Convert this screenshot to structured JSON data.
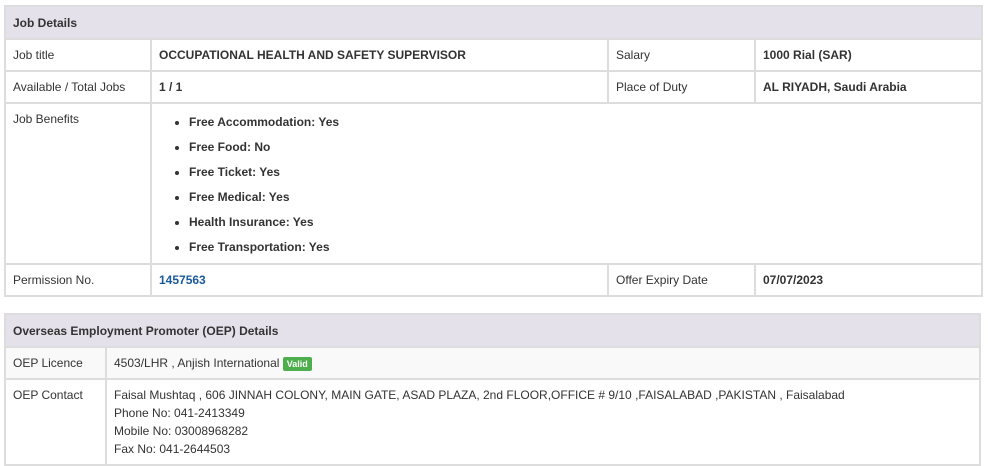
{
  "job_details": {
    "title": "Job Details",
    "job_title_label": "Job title",
    "job_title": "OCCUPATIONAL HEALTH AND SAFETY SUPERVISOR",
    "salary_label": "Salary",
    "salary": "1000 Rial (SAR)",
    "jobs_label": "Available / Total Jobs",
    "jobs": "1 / 1",
    "place_label": "Place of Duty",
    "place": "AL RIYADH, Saudi Arabia",
    "benefits_label": "Job Benefits",
    "benefits": [
      "Free Accommodation: Yes",
      "Free Food: No",
      "Free Ticket: Yes",
      "Free Medical: Yes",
      "Health Insurance: Yes",
      "Free Transportation: Yes"
    ],
    "permission_label": "Permission No.",
    "permission": "1457563",
    "expiry_label": "Offer Expiry Date",
    "expiry": "07/07/2023"
  },
  "oep": {
    "title": "Overseas Employment Promoter (OEP) Details",
    "licence_label": "OEP Licence",
    "licence": "4503/LHR , Anjish International",
    "licence_status": "Valid",
    "status_color": "#4cae4c",
    "contact_label": "OEP Contact",
    "contact_address": "Faisal Mushtaq , 606 JINNAH COLONY, MAIN GATE, ASAD PLAZA, 2nd FLOOR,OFFICE # 9/10 ,FAISALABAD ,PAKISTAN , Faisalabad",
    "phone": "Phone No: 041-2413349",
    "mobile": "Mobile No: 03008968282",
    "fax": "Fax No: 041-2644503"
  }
}
